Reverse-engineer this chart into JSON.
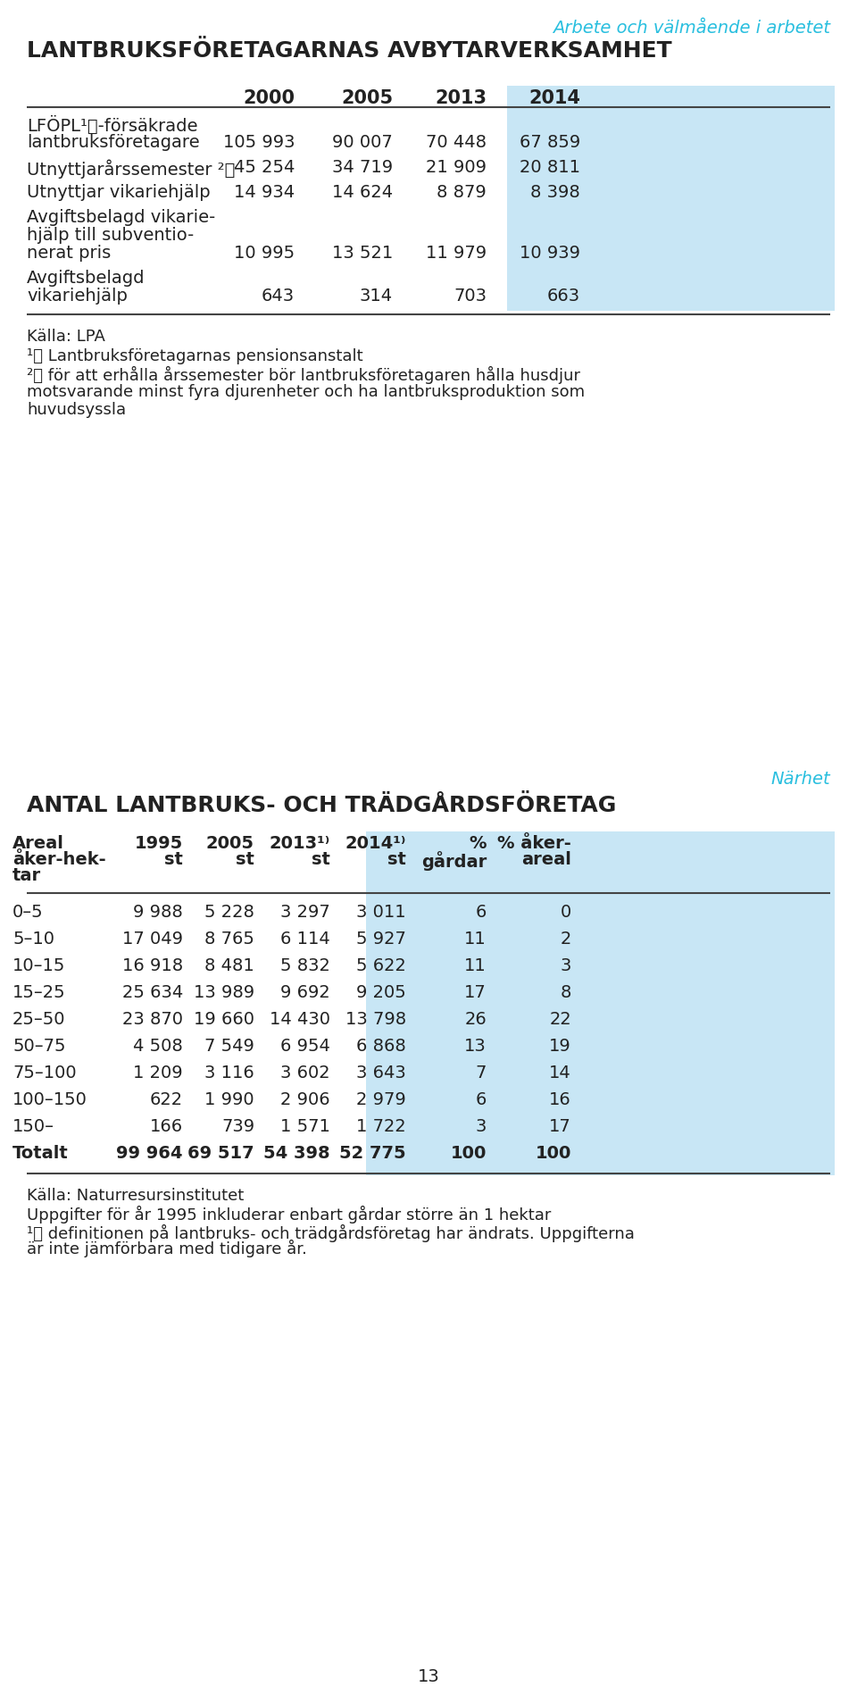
{
  "section1_title": "LANTBRUKSFÖRETAGARNAS AVBYTARVERKSAMHET",
  "section1_subtitle": "Arbete och välmående i arbetet",
  "section1_cols": [
    "2000",
    "2005",
    "2013",
    "2014"
  ],
  "section1_rows": [
    {
      "label": [
        "LFÖPL¹⧧-försäkrade",
        "lantbruksföretagare"
      ],
      "values": [
        "105 993",
        "90 007",
        "70 448",
        "67 859"
      ],
      "nlines": 2
    },
    {
      "label": [
        "Utnyttjarårssemester ²⧧"
      ],
      "values": [
        "45 254",
        "34 719",
        "21 909",
        "20 811"
      ],
      "nlines": 1
    },
    {
      "label": [
        "Utnyttjar vikariehjälp"
      ],
      "values": [
        "14 934",
        "14 624",
        "8 879",
        "8 398"
      ],
      "nlines": 1
    },
    {
      "label": [
        "Avgiftsbelagd vikarie-",
        "hjälp till subventio-",
        "nerat pris"
      ],
      "values": [
        "10 995",
        "13 521",
        "11 979",
        "10 939"
      ],
      "nlines": 3
    },
    {
      "label": [
        "Avgiftsbelagd",
        "vikariehjälp"
      ],
      "values": [
        "643",
        "314",
        "703",
        "663"
      ],
      "nlines": 2
    }
  ],
  "section1_source": "Källa: LPA",
  "section1_note1": "¹⧧ Lantbruksföretagarnas pensionsanstalt",
  "section1_note2a": "²⧧ för att erhålla årssemester bör lantbruksföretagaren hålla husdjur",
  "section1_note2b": "motsvarande minst fyra djurenheter och ha lantbruksproduktion som",
  "section1_note2c": "huvudsyssla",
  "section2_title": "ANTAL LANTBRUKS- OCH TRÄDGÅRDSFÖRETAG",
  "section2_subtitle": "Närhet",
  "section2_rows": [
    {
      "label": "0–5",
      "values": [
        "9 988",
        "5 228",
        "3 297",
        "3 011",
        "6",
        "0"
      ]
    },
    {
      "label": "5–10",
      "values": [
        "17 049",
        "8 765",
        "6 114",
        "5 927",
        "11",
        "2"
      ]
    },
    {
      "label": "10–15",
      "values": [
        "16 918",
        "8 481",
        "5 832",
        "5 622",
        "11",
        "3"
      ]
    },
    {
      "label": "15–25",
      "values": [
        "25 634",
        "13 989",
        "9 692",
        "9 205",
        "17",
        "8"
      ]
    },
    {
      "label": "25–50",
      "values": [
        "23 870",
        "19 660",
        "14 430",
        "13 798",
        "26",
        "22"
      ]
    },
    {
      "label": "50–75",
      "values": [
        "4 508",
        "7 549",
        "6 954",
        "6 868",
        "13",
        "19"
      ]
    },
    {
      "label": "75–100",
      "values": [
        "1 209",
        "3 116",
        "3 602",
        "3 643",
        "7",
        "14"
      ]
    },
    {
      "label": "100–150",
      "values": [
        "622",
        "1 990",
        "2 906",
        "2 979",
        "6",
        "16"
      ]
    },
    {
      "label": "150–",
      "values": [
        "166",
        "739",
        "1 571",
        "1 722",
        "3",
        "17"
      ]
    },
    {
      "label": "Totalt",
      "values": [
        "99 964",
        "69 517",
        "54 398",
        "52 775",
        "100",
        "100"
      ]
    }
  ],
  "section2_source": "Källa: Naturresursinstitutet",
  "section2_note1": "Uppgifter för år 1995 inkluderar enbart gårdar större än 1 hektar",
  "section2_note2a": "¹⧧ definitionen på lantbruks- och trädgårdsföretag har ändrats. Uppgifterna",
  "section2_note2b": "är inte jämförbara med tidigare år.",
  "page_number": "13",
  "highlight_color": "#C8E6F5",
  "text_color": "#222222",
  "cyan_color": "#29BFDF",
  "bg_color": "#FFFFFF",
  "lmargin": 30,
  "rmargin": 930
}
